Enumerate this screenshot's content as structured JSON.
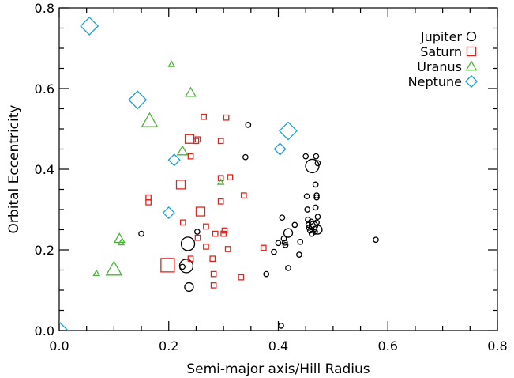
{
  "chart_data": {
    "type": "scatter",
    "title": "",
    "xlabel": "Semi-major axis/Hill Radius",
    "ylabel": "Orbital Eccentricity",
    "xlim": [
      0.0,
      0.8
    ],
    "ylim": [
      0.0,
      0.8
    ],
    "xticks": [
      "0.0",
      "0.2",
      "0.4",
      "0.6",
      "0.8"
    ],
    "yticks": [
      "0.0",
      "0.2",
      "0.4",
      "0.6",
      "0.8"
    ],
    "grid": false,
    "legend_position": "top-right",
    "series": [
      {
        "name": "Jupiter",
        "marker": "circle",
        "color": "#000000",
        "points": [
          [
            0.235,
            0.215,
            3
          ],
          [
            0.232,
            0.16,
            3
          ],
          [
            0.237,
            0.108,
            2
          ],
          [
            0.15,
            0.24,
            1
          ],
          [
            0.225,
            0.158,
            1
          ],
          [
            0.252,
            0.245,
            1
          ],
          [
            0.345,
            0.51,
            1
          ],
          [
            0.34,
            0.43,
            1
          ],
          [
            0.378,
            0.14,
            1
          ],
          [
            0.405,
            0.012,
            1
          ],
          [
            0.392,
            0.195,
            1
          ],
          [
            0.4,
            0.217,
            1
          ],
          [
            0.407,
            0.28,
            1
          ],
          [
            0.41,
            0.228,
            1
          ],
          [
            0.412,
            0.218,
            1
          ],
          [
            0.413,
            0.212,
            1
          ],
          [
            0.418,
            0.242,
            2
          ],
          [
            0.418,
            0.155,
            1
          ],
          [
            0.43,
            0.262,
            1
          ],
          [
            0.438,
            0.188,
            1
          ],
          [
            0.44,
            0.22,
            1
          ],
          [
            0.45,
            0.432,
            1
          ],
          [
            0.452,
            0.333,
            1
          ],
          [
            0.453,
            0.3,
            1
          ],
          [
            0.454,
            0.275,
            1
          ],
          [
            0.455,
            0.262,
            1
          ],
          [
            0.456,
            0.255,
            1
          ],
          [
            0.458,
            0.248,
            1
          ],
          [
            0.46,
            0.27,
            1
          ],
          [
            0.461,
            0.24,
            1
          ],
          [
            0.462,
            0.408,
            3
          ],
          [
            0.464,
            0.26,
            2
          ],
          [
            0.466,
            0.252,
            1
          ],
          [
            0.467,
            0.245,
            1
          ],
          [
            0.468,
            0.305,
            1
          ],
          [
            0.468,
            0.362,
            1
          ],
          [
            0.469,
            0.432,
            1
          ],
          [
            0.47,
            0.33,
            1
          ],
          [
            0.47,
            0.268,
            1
          ],
          [
            0.472,
            0.282,
            1
          ],
          [
            0.472,
            0.25,
            2
          ],
          [
            0.472,
            0.415,
            1
          ],
          [
            0.47,
            0.335,
            1
          ],
          [
            0.578,
            0.225,
            1
          ]
        ]
      },
      {
        "name": "Saturn",
        "marker": "square",
        "color": "#e0241f",
        "points": [
          [
            0.198,
            0.162,
            3
          ],
          [
            0.163,
            0.33,
            1
          ],
          [
            0.163,
            0.318,
            1
          ],
          [
            0.222,
            0.362,
            2
          ],
          [
            0.226,
            0.268,
            1
          ],
          [
            0.238,
            0.475,
            2
          ],
          [
            0.24,
            0.432,
            1
          ],
          [
            0.24,
            0.178,
            1
          ],
          [
            0.25,
            0.47,
            1
          ],
          [
            0.253,
            0.474,
            1
          ],
          [
            0.253,
            0.23,
            1
          ],
          [
            0.258,
            0.295,
            2
          ],
          [
            0.264,
            0.53,
            1
          ],
          [
            0.268,
            0.258,
            1
          ],
          [
            0.268,
            0.208,
            1
          ],
          [
            0.28,
            0.178,
            1
          ],
          [
            0.282,
            0.14,
            1
          ],
          [
            0.282,
            0.112,
            1
          ],
          [
            0.285,
            0.24,
            1
          ],
          [
            0.295,
            0.47,
            1
          ],
          [
            0.295,
            0.378,
            1
          ],
          [
            0.295,
            0.32,
            1
          ],
          [
            0.3,
            0.24,
            1
          ],
          [
            0.302,
            0.248,
            1
          ],
          [
            0.305,
            0.528,
            1
          ],
          [
            0.308,
            0.202,
            1
          ],
          [
            0.312,
            0.38,
            1
          ],
          [
            0.332,
            0.132,
            1
          ],
          [
            0.337,
            0.335,
            1
          ],
          [
            0.373,
            0.205,
            1
          ]
        ]
      },
      {
        "name": "Uranus",
        "marker": "triangle",
        "color": "#4cb23a",
        "points": [
          [
            0.068,
            0.142,
            1
          ],
          [
            0.1,
            0.152,
            3
          ],
          [
            0.11,
            0.228,
            2
          ],
          [
            0.113,
            0.218,
            1
          ],
          [
            0.165,
            0.52,
            3
          ],
          [
            0.205,
            0.66,
            1
          ],
          [
            0.225,
            0.445,
            2
          ],
          [
            0.24,
            0.59,
            2
          ],
          [
            0.295,
            0.368,
            1
          ]
        ]
      },
      {
        "name": "Neptune",
        "marker": "diamond",
        "color": "#1a9fd8",
        "points": [
          [
            0.0,
            0.0,
            3
          ],
          [
            0.055,
            0.755,
            3
          ],
          [
            0.143,
            0.572,
            3
          ],
          [
            0.2,
            0.292,
            2
          ],
          [
            0.21,
            0.423,
            2
          ],
          [
            0.403,
            0.45,
            2
          ],
          [
            0.418,
            0.495,
            3
          ]
        ]
      }
    ]
  }
}
